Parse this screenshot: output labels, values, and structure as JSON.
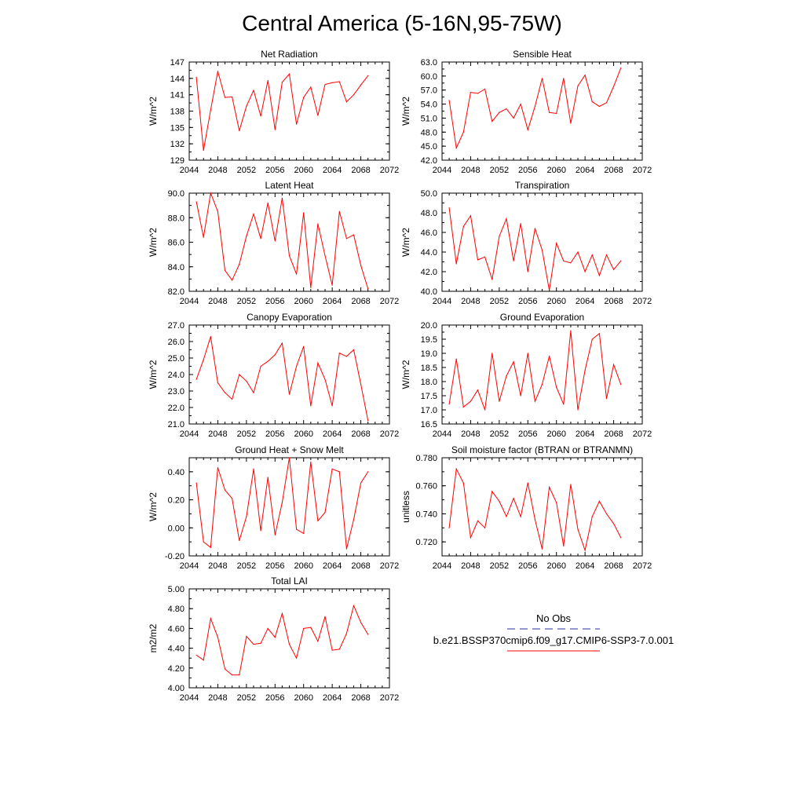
{
  "page_title": "Central America (5-16N,95-75W)",
  "legend": {
    "obs_label": "No Obs",
    "obs_color": "#2b2bb0",
    "model_label": "b.e21.BSSP370cmip6.f09_g17.CMIP6-SSP3-7.0.001",
    "model_color": "#ff0000"
  },
  "chart_data": [
    {
      "type": "line",
      "title": "Net Radiation",
      "ylabel": "W/m^2",
      "xlim": [
        2044,
        2072
      ],
      "ylim": [
        129,
        147
      ],
      "xticks": [
        "2044",
        "2048",
        "2052",
        "2056",
        "2060",
        "2064",
        "2068",
        "2072"
      ],
      "yticks": [
        "129",
        "132",
        "135",
        "138",
        "141",
        "144",
        "147"
      ],
      "x": [
        2045,
        2046,
        2047,
        2048,
        2049,
        2050,
        2051,
        2052,
        2053,
        2054,
        2055,
        2056,
        2057,
        2058,
        2059,
        2060,
        2061,
        2062,
        2063,
        2064,
        2065,
        2066,
        2067,
        2068,
        2069
      ],
      "series": [
        {
          "name": "b.e21.BSSP370cmip6.f09_g17.CMIP6-SSP3-7.0.001",
          "values": [
            144.2,
            130.8,
            138.2,
            145.3,
            140.5,
            140.6,
            134.4,
            138.9,
            141.8,
            137.1,
            143.6,
            134.6,
            143.3,
            144.8,
            135.6,
            140.5,
            142.4,
            137.2,
            142.9,
            143.2,
            143.4,
            139.7,
            141.0,
            142.8,
            144.5
          ]
        }
      ]
    },
    {
      "type": "line",
      "title": "Sensible Heat",
      "ylabel": "W/m^2",
      "xlim": [
        2044,
        2072
      ],
      "ylim": [
        42.0,
        63.0
      ],
      "xticks": [
        "2044",
        "2048",
        "2052",
        "2056",
        "2060",
        "2064",
        "2068",
        "2072"
      ],
      "yticks": [
        "42.0",
        "45.0",
        "48.0",
        "51.0",
        "54.0",
        "57.0",
        "60.0",
        "63.0"
      ],
      "x": [
        2045,
        2046,
        2047,
        2048,
        2049,
        2050,
        2051,
        2052,
        2053,
        2054,
        2055,
        2056,
        2057,
        2058,
        2059,
        2060,
        2061,
        2062,
        2063,
        2064,
        2065,
        2066,
        2067,
        2068,
        2069
      ],
      "series": [
        {
          "name": "b.e21.BSSP370cmip6.f09_g17.CMIP6-SSP3-7.0.001",
          "values": [
            54.8,
            44.6,
            48.0,
            56.5,
            56.3,
            57.2,
            50.3,
            52.2,
            53.0,
            51.0,
            54.0,
            48.5,
            53.5,
            59.5,
            52.2,
            52.0,
            59.5,
            49.9,
            57.9,
            60.2,
            54.5,
            53.5,
            54.3,
            57.8,
            61.7
          ]
        }
      ]
    },
    {
      "type": "line",
      "title": "Latent Heat",
      "ylabel": "W/m^2",
      "xlim": [
        2044,
        2072
      ],
      "ylim": [
        82.0,
        90.0
      ],
      "xticks": [
        "2044",
        "2048",
        "2052",
        "2056",
        "2060",
        "2064",
        "2068",
        "2072"
      ],
      "yticks": [
        "82.0",
        "84.0",
        "86.0",
        "88.0",
        "90.0"
      ],
      "x": [
        2045,
        2046,
        2047,
        2048,
        2049,
        2050,
        2051,
        2052,
        2053,
        2054,
        2055,
        2056,
        2057,
        2058,
        2059,
        2060,
        2061,
        2062,
        2063,
        2064,
        2065,
        2066,
        2067,
        2068,
        2069
      ],
      "series": [
        {
          "name": "b.e21.BSSP370cmip6.f09_g17.CMIP6-SSP3-7.0.001",
          "values": [
            89.3,
            86.4,
            90.0,
            88.5,
            83.7,
            82.9,
            84.2,
            86.5,
            88.3,
            86.3,
            89.2,
            86.1,
            89.6,
            84.9,
            83.4,
            88.4,
            82.3,
            87.5,
            84.9,
            82.5,
            88.5,
            86.3,
            86.6,
            84.1,
            82.2
          ]
        }
      ]
    },
    {
      "type": "line",
      "title": "Transpiration",
      "ylabel": "W/m^2",
      "xlim": [
        2044,
        2072
      ],
      "ylim": [
        40.0,
        50.0
      ],
      "xticks": [
        "2044",
        "2048",
        "2052",
        "2056",
        "2060",
        "2064",
        "2068",
        "2072"
      ],
      "yticks": [
        "40.0",
        "42.0",
        "44.0",
        "46.0",
        "48.0",
        "50.0"
      ],
      "x": [
        2045,
        2046,
        2047,
        2048,
        2049,
        2050,
        2051,
        2052,
        2053,
        2054,
        2055,
        2056,
        2057,
        2058,
        2059,
        2060,
        2061,
        2062,
        2063,
        2064,
        2065,
        2066,
        2067,
        2068,
        2069
      ],
      "series": [
        {
          "name": "b.e21.BSSP370cmip6.f09_g17.CMIP6-SSP3-7.0.001",
          "values": [
            48.5,
            42.8,
            46.6,
            47.7,
            43.2,
            43.5,
            41.2,
            45.6,
            47.4,
            43.1,
            46.9,
            42.0,
            46.4,
            44.2,
            40.1,
            44.9,
            43.1,
            42.9,
            44.0,
            42.0,
            43.7,
            41.6,
            43.7,
            42.2,
            43.1
          ]
        }
      ]
    },
    {
      "type": "line",
      "title": "Canopy Evaporation",
      "ylabel": "W/m^2",
      "xlim": [
        2044,
        2072
      ],
      "ylim": [
        21.0,
        27.0
      ],
      "xticks": [
        "2044",
        "2048",
        "2052",
        "2056",
        "2060",
        "2064",
        "2068",
        "2072"
      ],
      "yticks": [
        "21.0",
        "22.0",
        "23.0",
        "24.0",
        "25.0",
        "26.0",
        "27.0"
      ],
      "x": [
        2045,
        2046,
        2047,
        2048,
        2049,
        2050,
        2051,
        2052,
        2053,
        2054,
        2055,
        2056,
        2057,
        2058,
        2059,
        2060,
        2061,
        2062,
        2063,
        2064,
        2065,
        2066,
        2067,
        2068,
        2069
      ],
      "series": [
        {
          "name": "b.e21.BSSP370cmip6.f09_g17.CMIP6-SSP3-7.0.001",
          "values": [
            23.7,
            24.9,
            26.3,
            23.5,
            22.9,
            22.5,
            24.0,
            23.6,
            22.9,
            24.5,
            24.8,
            25.2,
            25.9,
            22.8,
            24.5,
            25.7,
            22.1,
            24.7,
            23.7,
            22.1,
            25.3,
            25.1,
            25.5,
            23.4,
            21.2
          ]
        }
      ]
    },
    {
      "type": "line",
      "title": "Ground Evaporation",
      "ylabel": "W/m^2",
      "xlim": [
        2044,
        2072
      ],
      "ylim": [
        16.5,
        20.0
      ],
      "xticks": [
        "2044",
        "2048",
        "2052",
        "2056",
        "2060",
        "2064",
        "2068",
        "2072"
      ],
      "yticks": [
        "16.5",
        "17.0",
        "17.5",
        "18.0",
        "18.5",
        "19.0",
        "19.5",
        "20.0"
      ],
      "x": [
        2045,
        2046,
        2047,
        2048,
        2049,
        2050,
        2051,
        2052,
        2053,
        2054,
        2055,
        2056,
        2057,
        2058,
        2059,
        2060,
        2061,
        2062,
        2063,
        2064,
        2065,
        2066,
        2067,
        2068,
        2069
      ],
      "series": [
        {
          "name": "b.e21.BSSP370cmip6.f09_g17.CMIP6-SSP3-7.0.001",
          "values": [
            17.2,
            18.8,
            17.1,
            17.3,
            17.7,
            17.0,
            19.0,
            17.3,
            18.2,
            18.7,
            17.5,
            19.0,
            17.3,
            17.9,
            18.9,
            17.8,
            17.2,
            19.8,
            17.0,
            18.4,
            19.5,
            19.7,
            17.4,
            18.6,
            17.9
          ]
        }
      ]
    },
    {
      "type": "line",
      "title": "Ground Heat + Snow Melt",
      "ylabel": "W/m^2",
      "xlim": [
        2044,
        2072
      ],
      "ylim": [
        -0.2,
        0.5
      ],
      "xticks": [
        "2044",
        "2048",
        "2052",
        "2056",
        "2060",
        "2064",
        "2068",
        "2072"
      ],
      "yticks": [
        "-0.20",
        "0.00",
        "0.20",
        "0.40"
      ],
      "ytick_values": [
        -0.2,
        0.0,
        0.2,
        0.4
      ],
      "x": [
        2045,
        2046,
        2047,
        2048,
        2049,
        2050,
        2051,
        2052,
        2053,
        2054,
        2055,
        2056,
        2057,
        2058,
        2059,
        2060,
        2061,
        2062,
        2063,
        2064,
        2065,
        2066,
        2067,
        2068,
        2069
      ],
      "series": [
        {
          "name": "b.e21.BSSP370cmip6.f09_g17.CMIP6-SSP3-7.0.001",
          "values": [
            0.32,
            -0.1,
            -0.14,
            0.43,
            0.27,
            0.21,
            -0.09,
            0.08,
            0.42,
            -0.02,
            0.36,
            -0.05,
            0.18,
            0.5,
            -0.01,
            -0.04,
            0.47,
            0.05,
            0.11,
            0.42,
            0.4,
            -0.15,
            0.06,
            0.32,
            0.4
          ]
        }
      ]
    },
    {
      "type": "line",
      "title": "Soil moisture factor (BTRAN or BTRANMN)",
      "ylabel": "unitless",
      "xlim": [
        2044,
        2072
      ],
      "ylim": [
        0.71,
        0.78
      ],
      "xticks": [
        "2044",
        "2048",
        "2052",
        "2056",
        "2060",
        "2064",
        "2068",
        "2072"
      ],
      "yticks": [
        "0.720",
        "0.740",
        "0.760",
        "0.780"
      ],
      "ytick_values": [
        0.72,
        0.74,
        0.76,
        0.78
      ],
      "x": [
        2045,
        2046,
        2047,
        2048,
        2049,
        2050,
        2051,
        2052,
        2053,
        2054,
        2055,
        2056,
        2057,
        2058,
        2059,
        2060,
        2061,
        2062,
        2063,
        2064,
        2065,
        2066,
        2067,
        2068,
        2069
      ],
      "series": [
        {
          "name": "b.e21.BSSP370cmip6.f09_g17.CMIP6-SSP3-7.0.001",
          "values": [
            0.73,
            0.772,
            0.762,
            0.723,
            0.735,
            0.73,
            0.756,
            0.749,
            0.738,
            0.751,
            0.738,
            0.762,
            0.736,
            0.715,
            0.759,
            0.748,
            0.717,
            0.761,
            0.729,
            0.714,
            0.738,
            0.749,
            0.74,
            0.733,
            0.723
          ]
        }
      ]
    },
    {
      "type": "line",
      "title": "Total LAI",
      "ylabel": "m2/m2",
      "xlim": [
        2044,
        2072
      ],
      "ylim": [
        4.0,
        5.0
      ],
      "xticks": [
        "2044",
        "2048",
        "2052",
        "2056",
        "2060",
        "2064",
        "2068",
        "2072"
      ],
      "yticks": [
        "4.00",
        "4.20",
        "4.40",
        "4.60",
        "4.80",
        "5.00"
      ],
      "x": [
        2045,
        2046,
        2047,
        2048,
        2049,
        2050,
        2051,
        2052,
        2053,
        2054,
        2055,
        2056,
        2057,
        2058,
        2059,
        2060,
        2061,
        2062,
        2063,
        2064,
        2065,
        2066,
        2067,
        2068,
        2069
      ],
      "series": [
        {
          "name": "b.e21.BSSP370cmip6.f09_g17.CMIP6-SSP3-7.0.001",
          "values": [
            4.33,
            4.28,
            4.7,
            4.51,
            4.19,
            4.13,
            4.13,
            4.52,
            4.44,
            4.45,
            4.6,
            4.51,
            4.75,
            4.44,
            4.3,
            4.6,
            4.61,
            4.47,
            4.72,
            4.38,
            4.39,
            4.55,
            4.83,
            4.66,
            4.54
          ]
        }
      ]
    }
  ]
}
